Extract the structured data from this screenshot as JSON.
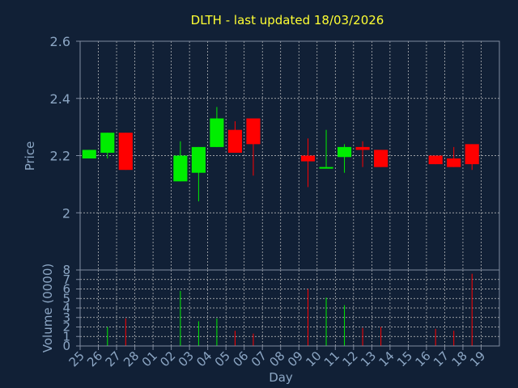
{
  "colors": {
    "background": "#112036",
    "axis": "#7f8ba0",
    "grid": "#c8c8c8",
    "title": "#ffff33",
    "label": "#8ca6c4",
    "up": "#00ee00",
    "down": "#ff0000"
  },
  "chart_data": [
    {
      "type": "candlestick",
      "title": "DLTH - last updated 18/03/2026",
      "ylabel": "Price",
      "ylim": [
        1.8,
        2.6
      ],
      "yticks": [
        {
          "v": 2,
          "label": "2"
        },
        {
          "v": 2.2,
          "label": "2.2"
        },
        {
          "v": 2.4,
          "label": "2.4"
        },
        {
          "v": 2.6,
          "label": "2.6"
        }
      ],
      "grid": true,
      "candles": [
        {
          "day": "25",
          "open": 2.19,
          "high": 2.22,
          "low": 2.19,
          "close": 2.22
        },
        {
          "day": "26",
          "open": 2.21,
          "high": 2.28,
          "low": 2.19,
          "close": 2.28
        },
        {
          "day": "27",
          "open": 2.28,
          "high": 2.28,
          "low": 2.15,
          "close": 2.15
        },
        {
          "day": "02",
          "open": 2.11,
          "high": 2.25,
          "low": 2.11,
          "close": 2.2
        },
        {
          "day": "03",
          "open": 2.14,
          "high": 2.23,
          "low": 2.04,
          "close": 2.23
        },
        {
          "day": "04",
          "open": 2.23,
          "high": 2.37,
          "low": 2.23,
          "close": 2.33
        },
        {
          "day": "05",
          "open": 2.29,
          "high": 2.32,
          "low": 2.21,
          "close": 2.21
        },
        {
          "day": "06",
          "open": 2.33,
          "high": 2.33,
          "low": 2.13,
          "close": 2.24
        },
        {
          "day": "09",
          "open": 2.2,
          "high": 2.26,
          "low": 2.09,
          "close": 2.18
        },
        {
          "day": "10",
          "open": 2.16,
          "high": 2.29,
          "low": 2.16,
          "close": 2.16
        },
        {
          "day": "11",
          "open": 2.195,
          "high": 2.24,
          "low": 2.14,
          "close": 2.23
        },
        {
          "day": "12",
          "open": 2.23,
          "high": 2.25,
          "low": 2.16,
          "close": 2.22
        },
        {
          "day": "13",
          "open": 2.22,
          "high": 2.22,
          "low": 2.16,
          "close": 2.16
        },
        {
          "day": "16",
          "open": 2.2,
          "high": 2.2,
          "low": 2.17,
          "close": 2.17
        },
        {
          "day": "17",
          "open": 2.19,
          "high": 2.23,
          "low": 2.16,
          "close": 2.16
        },
        {
          "day": "18",
          "open": 2.24,
          "high": 2.24,
          "low": 2.15,
          "close": 2.17
        }
      ]
    },
    {
      "type": "bar",
      "xlabel": "Day",
      "ylabel": "Volume (0000)",
      "ylim": [
        0,
        8
      ],
      "yticks": [
        0,
        1,
        2,
        3,
        4,
        5,
        6,
        7,
        8
      ],
      "categories": [
        "25",
        "26",
        "27",
        "28",
        "01",
        "02",
        "03",
        "04",
        "05",
        "06",
        "07",
        "08",
        "09",
        "10",
        "11",
        "12",
        "13",
        "14",
        "15",
        "16",
        "17",
        "18",
        "19"
      ],
      "volumes": [
        {
          "day": "26",
          "value": 2.0,
          "dir": "up"
        },
        {
          "day": "27",
          "value": 2.9,
          "dir": "down"
        },
        {
          "day": "02",
          "value": 5.8,
          "dir": "up"
        },
        {
          "day": "03",
          "value": 2.6,
          "dir": "up"
        },
        {
          "day": "04",
          "value": 2.9,
          "dir": "up"
        },
        {
          "day": "05",
          "value": 1.6,
          "dir": "down"
        },
        {
          "day": "06",
          "value": 1.3,
          "dir": "down"
        },
        {
          "day": "09",
          "value": 6.0,
          "dir": "down"
        },
        {
          "day": "10",
          "value": 5.1,
          "dir": "up"
        },
        {
          "day": "11",
          "value": 4.3,
          "dir": "up"
        },
        {
          "day": "12",
          "value": 1.9,
          "dir": "down"
        },
        {
          "day": "13",
          "value": 2.0,
          "dir": "down"
        },
        {
          "day": "16",
          "value": 1.8,
          "dir": "down"
        },
        {
          "day": "17",
          "value": 1.6,
          "dir": "down"
        },
        {
          "day": "18",
          "value": 7.6,
          "dir": "down"
        }
      ]
    }
  ]
}
